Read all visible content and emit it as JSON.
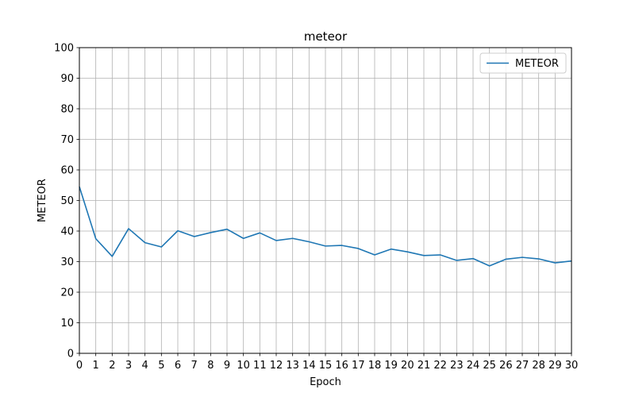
{
  "chart_data": {
    "type": "line",
    "title": "meteor",
    "xlabel": "Epoch",
    "ylabel": "METEOR",
    "xlim": [
      0,
      30
    ],
    "ylim": [
      0,
      100
    ],
    "x_ticks": [
      0,
      1,
      2,
      3,
      4,
      5,
      6,
      7,
      8,
      9,
      10,
      11,
      12,
      13,
      14,
      15,
      16,
      17,
      18,
      19,
      20,
      21,
      22,
      23,
      24,
      25,
      26,
      27,
      28,
      29,
      30
    ],
    "y_ticks": [
      0,
      10,
      20,
      30,
      40,
      50,
      60,
      70,
      80,
      90,
      100
    ],
    "grid": true,
    "legend_position": "top-right",
    "series": [
      {
        "name": "METEOR",
        "color": "#1f77b4",
        "x": [
          0,
          1,
          2,
          3,
          4,
          5,
          6,
          7,
          8,
          9,
          10,
          11,
          12,
          13,
          14,
          15,
          16,
          17,
          18,
          19,
          20,
          21,
          22,
          23,
          24,
          25,
          26,
          27,
          28,
          29,
          30
        ],
        "values": [
          54.5,
          37.5,
          31.7,
          40.8,
          36.2,
          34.8,
          40.1,
          38.2,
          39.5,
          40.6,
          37.6,
          39.4,
          36.9,
          37.6,
          36.5,
          35.1,
          35.3,
          34.3,
          32.2,
          34.1,
          33.2,
          32.0,
          32.2,
          30.4,
          31.0,
          28.6,
          30.8,
          31.4,
          30.9,
          29.6,
          30.2
        ]
      }
    ]
  }
}
